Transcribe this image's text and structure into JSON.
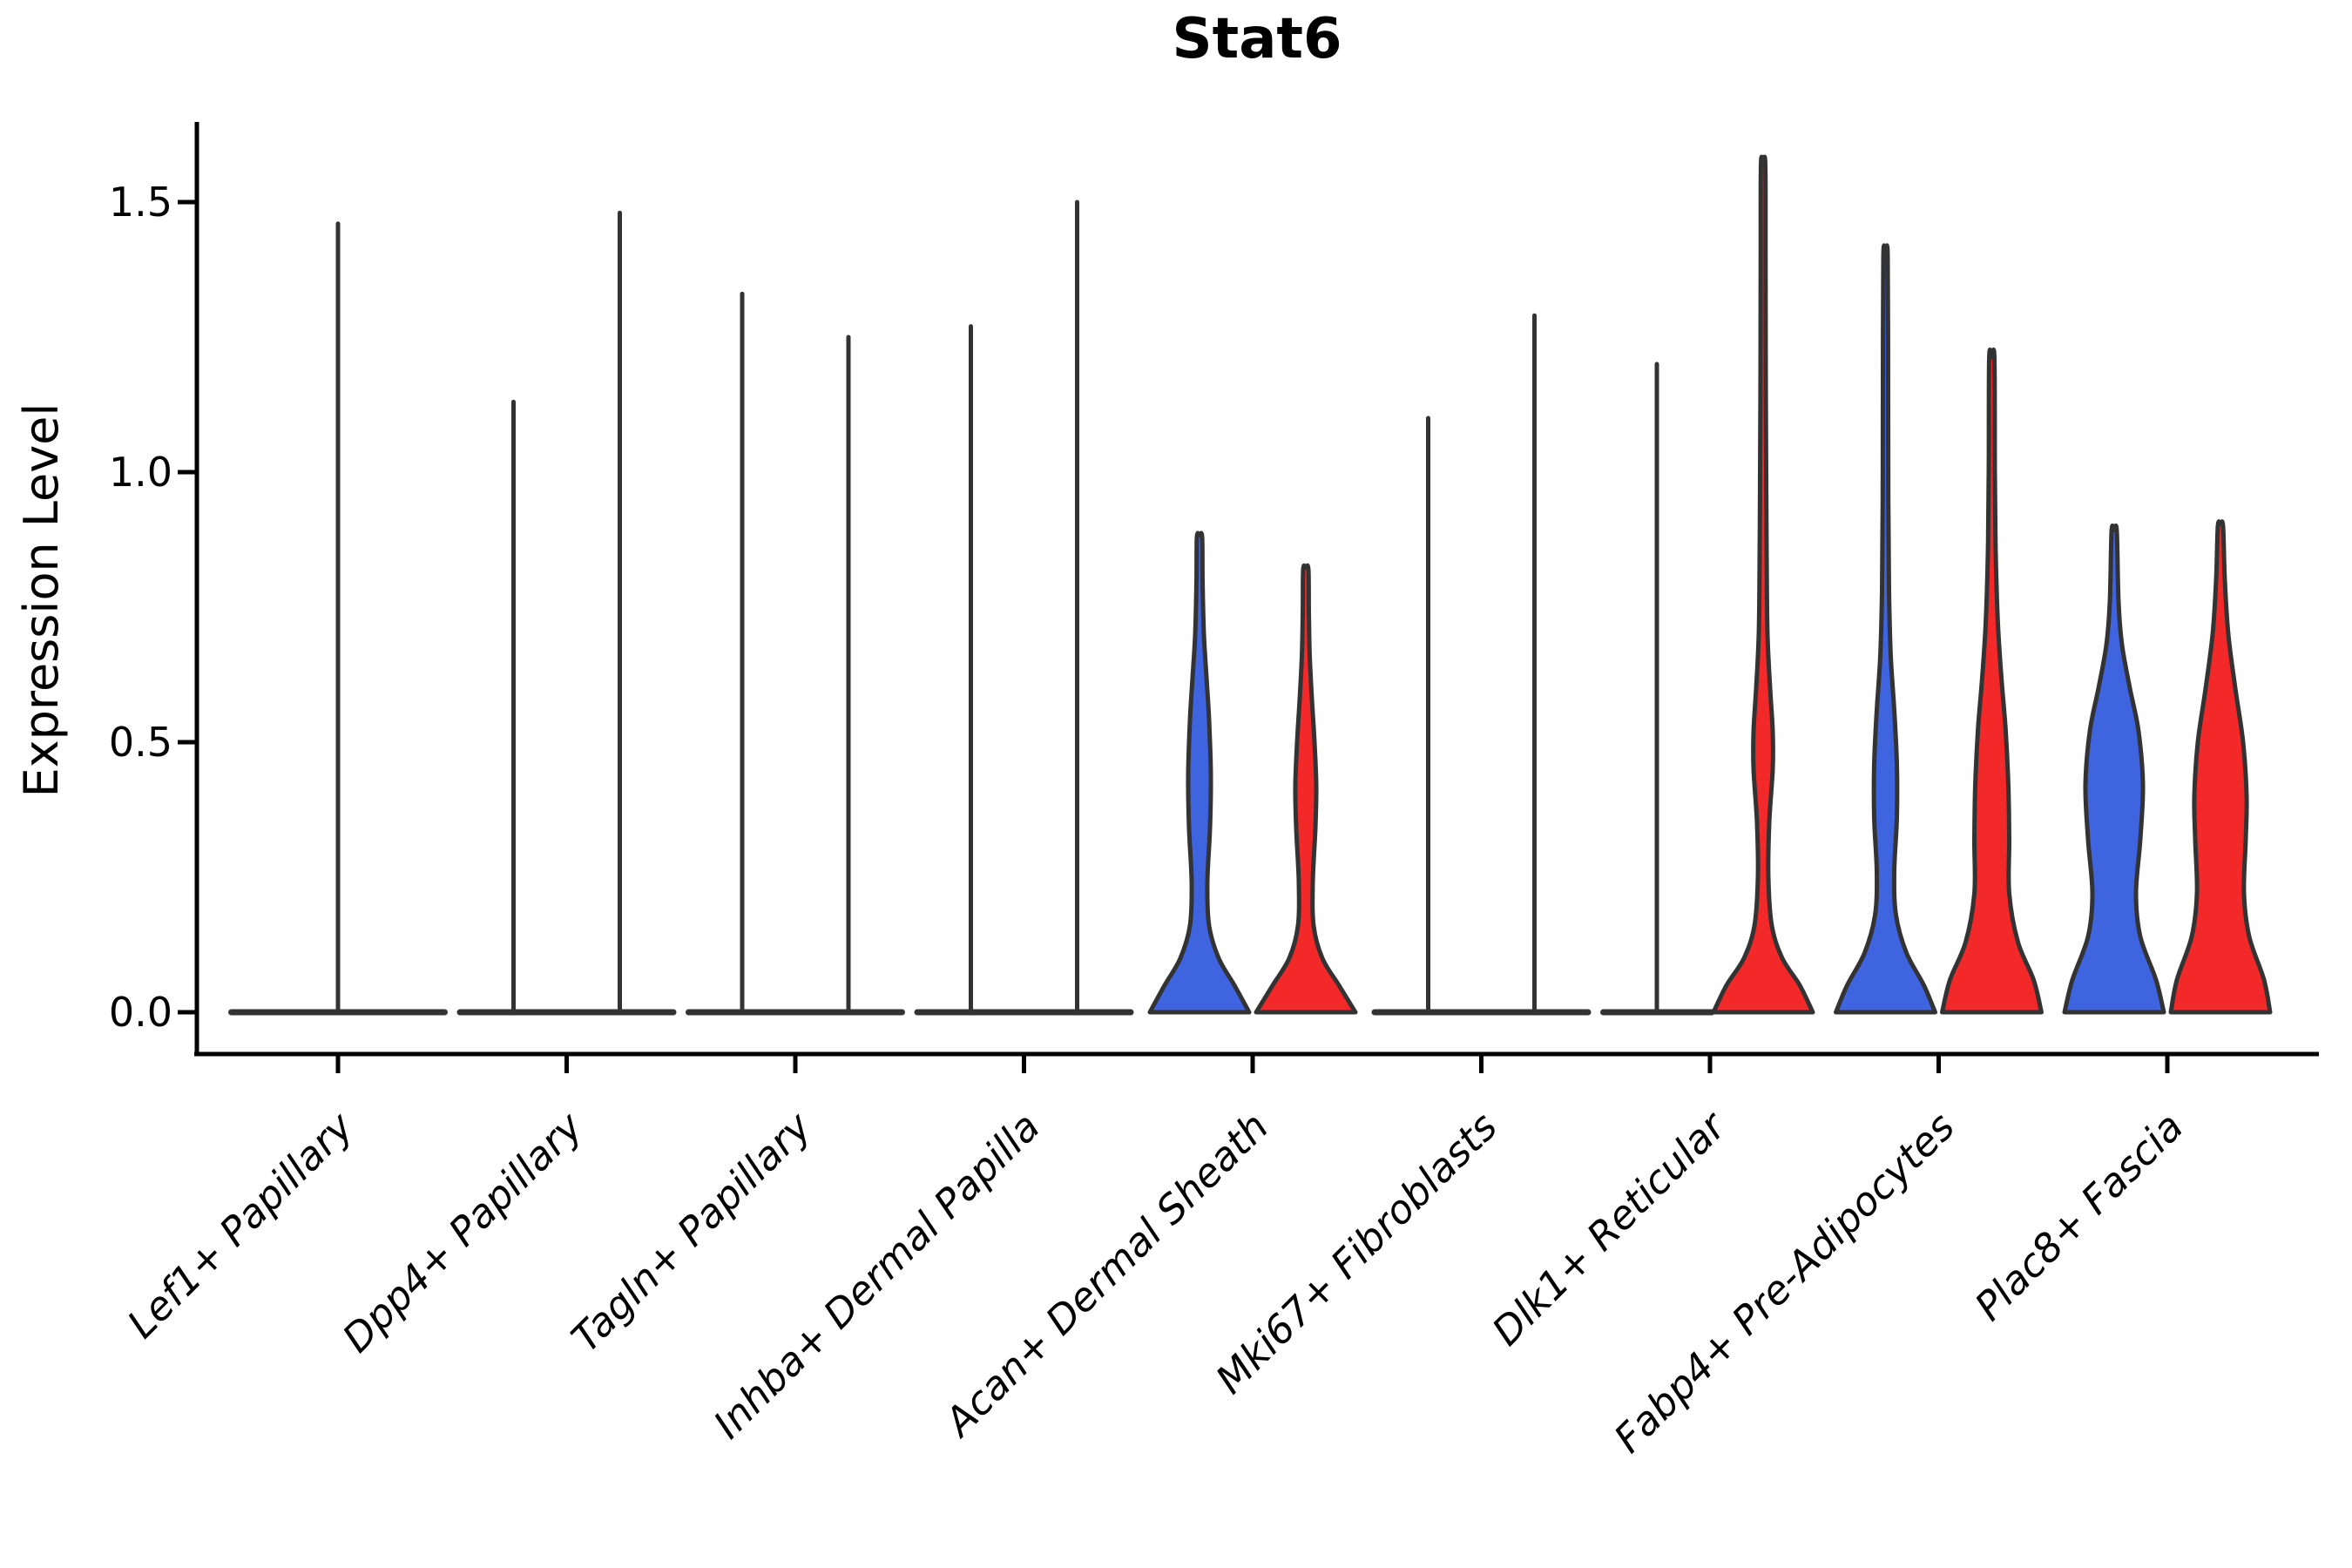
{
  "chart_data": {
    "type": "violin",
    "title": "Stat6",
    "ylabel": "Expression Level",
    "xlabel": "",
    "ylim": [
      0,
      1.65
    ],
    "grid": false,
    "legend": "none",
    "ytick_labels": [
      "0.0",
      "0.5",
      "1.0",
      "1.5"
    ],
    "ytick_values": [
      0.0,
      0.5,
      1.0,
      1.5
    ],
    "colors": {
      "blue": "#3f64e0",
      "red": "#f32929",
      "outline": "#333333",
      "axis": "#000000"
    },
    "split_groups": [
      "blue",
      "red"
    ],
    "categories": [
      {
        "label": "Lef1+ Papillary",
        "violins": [
          {
            "position": "center",
            "fill": "none",
            "shape": "spike",
            "peak": 1.46
          }
        ]
      },
      {
        "label": "Dpp4+ Papillary",
        "violins": [
          {
            "position": "left",
            "fill": "none",
            "shape": "spike",
            "peak": 1.13
          },
          {
            "position": "right",
            "fill": "none",
            "shape": "spike",
            "peak": 1.48
          }
        ]
      },
      {
        "label": "Tagln+ Papillary",
        "violins": [
          {
            "position": "left",
            "fill": "none",
            "shape": "spike",
            "peak": 1.33
          },
          {
            "position": "right",
            "fill": "none",
            "shape": "spike",
            "peak": 1.25
          }
        ]
      },
      {
        "label": "Inhba+ Dermal Papilla",
        "violins": [
          {
            "position": "left",
            "fill": "none",
            "shape": "spike",
            "peak": 1.27
          },
          {
            "position": "right",
            "fill": "none",
            "shape": "spike",
            "peak": 1.5
          }
        ]
      },
      {
        "label": "Acan+ Dermal Sheath",
        "violins": [
          {
            "position": "left",
            "fill": "blue",
            "shape": "violin",
            "peak": 0.88,
            "profile": [
              [
                0,
                57
              ],
              [
                0.05,
                40
              ],
              [
                0.1,
                22
              ],
              [
                0.16,
                11
              ],
              [
                0.24,
                9
              ],
              [
                0.34,
                12
              ],
              [
                0.44,
                13
              ],
              [
                0.54,
                11
              ],
              [
                0.62,
                8
              ],
              [
                0.7,
                5
              ],
              [
                0.8,
                3.5
              ],
              [
                0.88,
                3
              ]
            ]
          },
          {
            "position": "right",
            "fill": "red",
            "shape": "violin",
            "peak": 0.82,
            "profile": [
              [
                0,
                57
              ],
              [
                0.05,
                38
              ],
              [
                0.1,
                19
              ],
              [
                0.16,
                9
              ],
              [
                0.24,
                8
              ],
              [
                0.34,
                11
              ],
              [
                0.42,
                12
              ],
              [
                0.5,
                10
              ],
              [
                0.58,
                7
              ],
              [
                0.66,
                4.5
              ],
              [
                0.74,
                3.5
              ],
              [
                0.82,
                3
              ]
            ]
          }
        ]
      },
      {
        "label": "Mki67+ Fibroblasts",
        "violins": [
          {
            "position": "left",
            "fill": "none",
            "shape": "spike",
            "peak": 1.1
          },
          {
            "position": "right",
            "fill": "none",
            "shape": "spike",
            "peak": 1.29
          }
        ]
      },
      {
        "label": "Dlk1+ Reticular",
        "violins": [
          {
            "position": "left",
            "fill": "none",
            "shape": "spike",
            "peak": 1.2
          },
          {
            "position": "right",
            "fill": "red",
            "shape": "violin",
            "peak": 1.57,
            "profile": [
              [
                0,
                57
              ],
              [
                0.05,
                42
              ],
              [
                0.1,
                22
              ],
              [
                0.16,
                10
              ],
              [
                0.25,
                6
              ],
              [
                0.35,
                7
              ],
              [
                0.45,
                11
              ],
              [
                0.52,
                11
              ],
              [
                0.6,
                8
              ],
              [
                0.7,
                5
              ],
              [
                0.85,
                4
              ],
              [
                1.0,
                3.5
              ],
              [
                1.2,
                3
              ],
              [
                1.4,
                2.8
              ],
              [
                1.57,
                2.5
              ]
            ]
          }
        ]
      },
      {
        "label": "Fabp4+ Pre-Adipocytes",
        "violins": [
          {
            "position": "left",
            "fill": "blue",
            "shape": "violin",
            "peak": 1.4,
            "profile": [
              [
                0,
                57
              ],
              [
                0.05,
                44
              ],
              [
                0.11,
                24
              ],
              [
                0.18,
                12
              ],
              [
                0.26,
                10
              ],
              [
                0.36,
                13
              ],
              [
                0.46,
                13
              ],
              [
                0.56,
                10
              ],
              [
                0.66,
                6
              ],
              [
                0.78,
                4
              ],
              [
                0.95,
                3.2
              ],
              [
                1.15,
                3
              ],
              [
                1.4,
                2.5
              ]
            ]
          },
          {
            "position": "right",
            "fill": "red",
            "shape": "violin",
            "peak": 1.21,
            "profile": [
              [
                0,
                57
              ],
              [
                0.06,
                48
              ],
              [
                0.13,
                30
              ],
              [
                0.22,
                20
              ],
              [
                0.32,
                20
              ],
              [
                0.42,
                19
              ],
              [
                0.52,
                16
              ],
              [
                0.62,
                11
              ],
              [
                0.72,
                7
              ],
              [
                0.85,
                4.5
              ],
              [
                1.0,
                3.5
              ],
              [
                1.21,
                3
              ]
            ]
          }
        ]
      },
      {
        "label": "Plac8+ Fascia",
        "violins": [
          {
            "position": "left",
            "fill": "blue",
            "shape": "violin",
            "peak": 0.89,
            "profile": [
              [
                0,
                57
              ],
              [
                0.06,
                48
              ],
              [
                0.14,
                30
              ],
              [
                0.22,
                25
              ],
              [
                0.32,
                30
              ],
              [
                0.42,
                33
              ],
              [
                0.52,
                28
              ],
              [
                0.6,
                18
              ],
              [
                0.68,
                9
              ],
              [
                0.76,
                5
              ],
              [
                0.89,
                3
              ]
            ]
          },
          {
            "position": "right",
            "fill": "red",
            "shape": "violin",
            "peak": 0.9,
            "profile": [
              [
                0,
                57
              ],
              [
                0.06,
                50
              ],
              [
                0.14,
                33
              ],
              [
                0.22,
                27
              ],
              [
                0.32,
                29
              ],
              [
                0.4,
                30
              ],
              [
                0.5,
                26
              ],
              [
                0.6,
                17
              ],
              [
                0.7,
                9
              ],
              [
                0.8,
                5
              ],
              [
                0.9,
                3
              ]
            ]
          }
        ]
      }
    ]
  }
}
